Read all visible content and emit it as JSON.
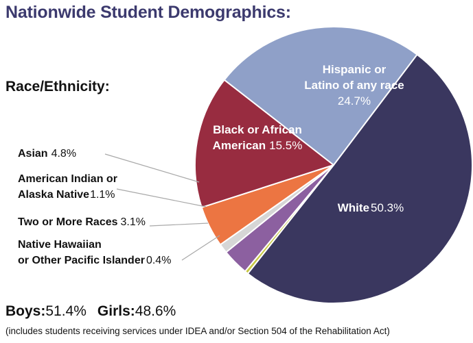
{
  "title": "Nationwide Student Demographics:",
  "section_label": "Race/Ethnicity:",
  "chart_data": {
    "type": "pie",
    "slices": [
      {
        "label": "White",
        "value": 50.3,
        "value_text": "50.3%",
        "color": "#3a375f"
      },
      {
        "label": "Native Hawaiian or Other Pacific Islander",
        "value": 0.4,
        "value_text": "0.4%",
        "color": "#c8c844"
      },
      {
        "label": "Two or More Races",
        "value": 3.1,
        "value_text": "3.1%",
        "color": "#8c60a0"
      },
      {
        "label": "American Indian or Alaska Native",
        "value": 1.1,
        "value_text": "1.1%",
        "color": "#d6d6d6"
      },
      {
        "label": "Asian",
        "value": 4.8,
        "value_text": "4.8%",
        "color": "#ec7542"
      },
      {
        "label": "Black or African American",
        "value": 15.5,
        "value_text": "15.5%",
        "color": "#982c40"
      },
      {
        "label": "Hispanic or Latino of any race",
        "value": 24.7,
        "value_text": "24.7%",
        "color": "#8fa0c8"
      }
    ]
  },
  "labels": {
    "hispanic_line1": "Hispanic or",
    "hispanic_line2": "Latino of any race",
    "black_line1": "Black or African",
    "black_line2": "American",
    "white": "White",
    "asian": "Asian",
    "american_indian_line1": "American Indian or",
    "american_indian_line2": "Alaska Native",
    "two_or_more": "Two or More Races",
    "native_hawaiian_line1": "Native Hawaiian",
    "native_hawaiian_line2": "or Other Pacific Islander"
  },
  "gender": {
    "boys_label": "Boys:",
    "boys_value": "51.4%",
    "girls_label": "Girls:",
    "girls_value": "48.6%"
  },
  "footnote": "(includes students receiving services under IDEA and/or Section 504 of the Rehabilitation Act)"
}
